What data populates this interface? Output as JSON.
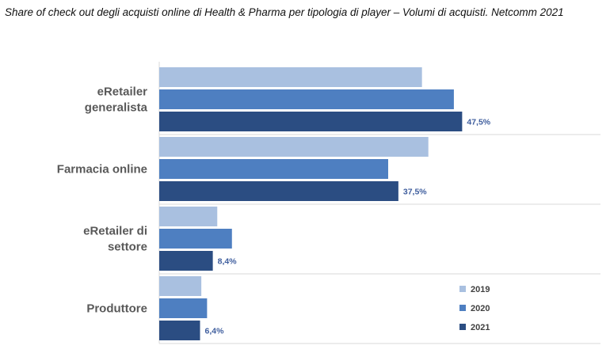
{
  "chart_data": {
    "type": "bar",
    "orientation": "horizontal",
    "title": "Share of check out degli acquisti online di Health & Pharma per tipologia di player – Volumi di acquisti. Netcomm 2021",
    "categories": [
      [
        "eRetailer",
        "generalista"
      ],
      [
        "Farmacia online"
      ],
      [
        "eRetailer di",
        "settore"
      ],
      [
        "Produttore"
      ]
    ],
    "series": [
      {
        "name": "2019",
        "color": "#a9c0e0",
        "values": [
          41.2,
          42.2,
          9.1,
          6.6
        ],
        "labels": [
          "",
          "",
          "",
          ""
        ]
      },
      {
        "name": "2020",
        "color": "#4e7fc1",
        "values": [
          46.2,
          35.9,
          11.4,
          7.5
        ],
        "labels": [
          "",
          "",
          "",
          ""
        ]
      },
      {
        "name": "2021",
        "color": "#2b4d82",
        "values": [
          47.5,
          37.5,
          8.4,
          6.4
        ],
        "labels": [
          "47,5%",
          "37,5%",
          "8,4%",
          "6,4%"
        ]
      }
    ],
    "xlim": [
      0,
      70
    ],
    "grid": false,
    "legend_position": "bottom-right"
  }
}
